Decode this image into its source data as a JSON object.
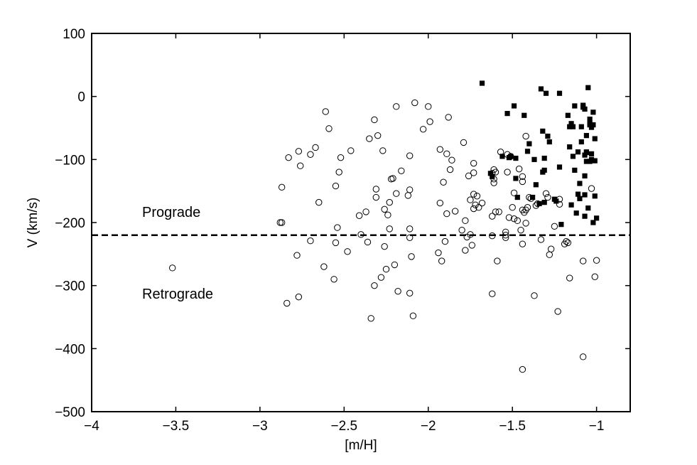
{
  "chart_data": {
    "type": "scatter",
    "xlabel": "[m/H]",
    "ylabel": "V (km/s)",
    "xlim": [
      -4,
      -0.8
    ],
    "ylim": [
      -500,
      100
    ],
    "xticks": [
      -4,
      -3.5,
      -3,
      -2.5,
      -2,
      -1.5,
      -1
    ],
    "xtick_labels": [
      "−4",
      "−3.5",
      "−3",
      "−2.5",
      "−2",
      "−1.5",
      "−1"
    ],
    "yticks": [
      100,
      0,
      -100,
      -200,
      -300,
      -400,
      -500
    ],
    "ytick_labels": [
      "100",
      "0",
      "−100",
      "−200",
      "−300",
      "−400",
      "−500"
    ],
    "grid": false,
    "reference_line": {
      "y": -220,
      "style": "dashed"
    },
    "annotations": [
      {
        "text": "Prograde",
        "x": -3.37,
        "y": -183
      },
      {
        "text": "Retrograde",
        "x": -3.37,
        "y": -312
      }
    ],
    "series": [
      {
        "marker": "open-circle",
        "points": [
          [
            -3.52,
            -272
          ],
          [
            -2.88,
            -200
          ],
          [
            -2.87,
            -200
          ],
          [
            -2.87,
            -144
          ],
          [
            -2.84,
            -328
          ],
          [
            -2.83,
            -97
          ],
          [
            -2.78,
            -252
          ],
          [
            -2.77,
            -318
          ],
          [
            -2.77,
            -87
          ],
          [
            -2.76,
            -110
          ],
          [
            -2.7,
            -92
          ],
          [
            -2.7,
            -229
          ],
          [
            -2.67,
            -81
          ],
          [
            -2.65,
            -168
          ],
          [
            -2.62,
            -270
          ],
          [
            -2.61,
            -24
          ],
          [
            -2.59,
            -51
          ],
          [
            -2.56,
            -290
          ],
          [
            -2.55,
            -232
          ],
          [
            -2.55,
            -142
          ],
          [
            -2.54,
            -208
          ],
          [
            -2.53,
            -120
          ],
          [
            -2.52,
            -97
          ],
          [
            -2.48,
            -246
          ],
          [
            -2.46,
            -86
          ],
          [
            -2.41,
            -189
          ],
          [
            -2.4,
            -219
          ],
          [
            -2.37,
            -183
          ],
          [
            -2.36,
            -231
          ],
          [
            -2.35,
            -67
          ],
          [
            -2.34,
            -352
          ],
          [
            -2.32,
            -37
          ],
          [
            -2.32,
            -300
          ],
          [
            -2.31,
            -147
          ],
          [
            -2.31,
            -160
          ],
          [
            -2.3,
            -62
          ],
          [
            -2.28,
            -287
          ],
          [
            -2.27,
            -86
          ],
          [
            -2.26,
            -179
          ],
          [
            -2.26,
            -238
          ],
          [
            -2.25,
            -274
          ],
          [
            -2.24,
            -188
          ],
          [
            -2.23,
            -168
          ],
          [
            -2.23,
            -210
          ],
          [
            -2.22,
            -131
          ],
          [
            -2.21,
            -130
          ],
          [
            -2.2,
            -267
          ],
          [
            -2.19,
            -16
          ],
          [
            -2.19,
            -154
          ],
          [
            -2.18,
            -309
          ],
          [
            -2.16,
            -118
          ],
          [
            -2.12,
            -157
          ],
          [
            -2.11,
            -210
          ],
          [
            -2.11,
            -94
          ],
          [
            -2.11,
            -224
          ],
          [
            -2.11,
            -148
          ],
          [
            -2.11,
            -312
          ],
          [
            -2.1,
            -254
          ],
          [
            -2.09,
            -348
          ],
          [
            -2.08,
            -10
          ],
          [
            -2.03,
            -52
          ],
          [
            -2.0,
            -16
          ],
          [
            -1.99,
            -40
          ],
          [
            -1.94,
            -248
          ],
          [
            -1.93,
            -84
          ],
          [
            -1.93,
            -169
          ],
          [
            -1.92,
            -261
          ],
          [
            -1.91,
            -136
          ],
          [
            -1.9,
            -230
          ],
          [
            -1.89,
            -91
          ],
          [
            -1.89,
            -186
          ],
          [
            -1.88,
            -33
          ],
          [
            -1.87,
            -116
          ],
          [
            -1.86,
            -101
          ],
          [
            -1.84,
            -182
          ],
          [
            -1.8,
            -212
          ],
          [
            -1.79,
            -73
          ],
          [
            -1.78,
            -197
          ],
          [
            -1.78,
            -244
          ],
          [
            -1.77,
            -223
          ],
          [
            -1.76,
            -126
          ],
          [
            -1.75,
            -164
          ],
          [
            -1.75,
            -219
          ],
          [
            -1.74,
            -236
          ],
          [
            -1.73,
            -106
          ],
          [
            -1.73,
            -121
          ],
          [
            -1.73,
            -178
          ],
          [
            -1.73,
            -155
          ],
          [
            -1.72,
            -172
          ],
          [
            -1.71,
            -158
          ],
          [
            -1.7,
            -176
          ],
          [
            -1.68,
            -169
          ],
          [
            -1.62,
            -122
          ],
          [
            -1.62,
            -221
          ],
          [
            -1.62,
            -313
          ],
          [
            -1.62,
            -190
          ],
          [
            -1.61,
            -116
          ],
          [
            -1.61,
            -131
          ],
          [
            -1.61,
            -137
          ],
          [
            -1.6,
            -120
          ],
          [
            -1.6,
            -183
          ],
          [
            -1.59,
            -261
          ],
          [
            -1.58,
            -183
          ],
          [
            -1.57,
            -88
          ],
          [
            -1.54,
            -215
          ],
          [
            -1.54,
            -220
          ],
          [
            -1.54,
            -224
          ],
          [
            -1.53,
            -120
          ],
          [
            -1.53,
            -92
          ],
          [
            -1.52,
            -192
          ],
          [
            -1.51,
            -95
          ],
          [
            -1.5,
            -176
          ],
          [
            -1.49,
            -153
          ],
          [
            -1.49,
            -194
          ],
          [
            -1.47,
            -197
          ],
          [
            -1.46,
            -115
          ],
          [
            -1.45,
            -212
          ],
          [
            -1.44,
            -135
          ],
          [
            -1.44,
            -127
          ],
          [
            -1.44,
            -433
          ],
          [
            -1.44,
            -234
          ],
          [
            -1.44,
            -180
          ],
          [
            -1.43,
            -184
          ],
          [
            -1.42,
            -180
          ],
          [
            -1.42,
            -63
          ],
          [
            -1.42,
            -201
          ],
          [
            -1.41,
            -176
          ],
          [
            -1.4,
            -160
          ],
          [
            -1.39,
            -162
          ],
          [
            -1.37,
            -316
          ],
          [
            -1.36,
            -173
          ],
          [
            -1.35,
            -170
          ],
          [
            -1.33,
            -227
          ],
          [
            -1.3,
            -154
          ],
          [
            -1.29,
            -160
          ],
          [
            -1.28,
            -251
          ],
          [
            -1.27,
            -242
          ],
          [
            -1.25,
            -206
          ],
          [
            -1.23,
            -341
          ],
          [
            -1.22,
            -163
          ],
          [
            -1.22,
            -171
          ],
          [
            -1.19,
            -234
          ],
          [
            -1.18,
            -230
          ],
          [
            -1.17,
            -232
          ],
          [
            -1.16,
            -288
          ],
          [
            -1.08,
            -261
          ],
          [
            -1.08,
            -413
          ],
          [
            -1.03,
            -146
          ],
          [
            -1.01,
            -286
          ],
          [
            -1.0,
            -260
          ]
        ]
      },
      {
        "marker": "filled-square",
        "points": [
          [
            -1.68,
            21
          ],
          [
            -1.63,
            -122
          ],
          [
            -1.62,
            -127
          ],
          [
            -1.56,
            -95
          ],
          [
            -1.53,
            -27
          ],
          [
            -1.52,
            -97
          ],
          [
            -1.51,
            -95
          ],
          [
            -1.49,
            -15
          ],
          [
            -1.48,
            -98
          ],
          [
            -1.48,
            -130
          ],
          [
            -1.47,
            -160
          ],
          [
            -1.43,
            -30
          ],
          [
            -1.41,
            -87
          ],
          [
            -1.4,
            -75
          ],
          [
            -1.38,
            -160
          ],
          [
            -1.37,
            -100
          ],
          [
            -1.36,
            -140
          ],
          [
            -1.34,
            -170
          ],
          [
            -1.33,
            12
          ],
          [
            -1.32,
            -55
          ],
          [
            -1.32,
            -120
          ],
          [
            -1.31,
            -98
          ],
          [
            -1.31,
            -117
          ],
          [
            -1.31,
            -168
          ],
          [
            -1.3,
            5
          ],
          [
            -1.29,
            -63
          ],
          [
            -1.28,
            -72
          ],
          [
            -1.25,
            -163
          ],
          [
            -1.24,
            -166
          ],
          [
            -1.22,
            5
          ],
          [
            -1.22,
            -112
          ],
          [
            -1.21,
            -203
          ],
          [
            -1.17,
            -30
          ],
          [
            -1.16,
            -48
          ],
          [
            -1.16,
            -80
          ],
          [
            -1.15,
            -43
          ],
          [
            -1.15,
            -172
          ],
          [
            -1.14,
            -95
          ],
          [
            -1.14,
            -48
          ],
          [
            -1.13,
            -15
          ],
          [
            -1.13,
            -117
          ],
          [
            -1.12,
            -185
          ],
          [
            -1.11,
            -88
          ],
          [
            -1.11,
            -155
          ],
          [
            -1.1,
            -162
          ],
          [
            -1.1,
            -138
          ],
          [
            -1.09,
            -48
          ],
          [
            -1.09,
            -72
          ],
          [
            -1.08,
            -17
          ],
          [
            -1.08,
            -14
          ],
          [
            -1.07,
            -20
          ],
          [
            -1.07,
            -93
          ],
          [
            -1.07,
            -126
          ],
          [
            -1.07,
            -156
          ],
          [
            -1.07,
            -190
          ],
          [
            -1.06,
            -62
          ],
          [
            -1.06,
            -103
          ],
          [
            -1.06,
            -89
          ],
          [
            -1.06,
            -88
          ],
          [
            -1.05,
            -177
          ],
          [
            -1.05,
            14
          ],
          [
            -1.04,
            -36
          ],
          [
            -1.04,
            -43
          ],
          [
            -1.04,
            -45
          ],
          [
            -1.04,
            -103
          ],
          [
            -1.03,
            -49
          ],
          [
            -1.03,
            -91
          ],
          [
            -1.03,
            -100
          ],
          [
            -1.02,
            -25
          ],
          [
            -1.02,
            -45
          ],
          [
            -1.02,
            -200
          ],
          [
            -1.01,
            -158
          ],
          [
            -1.01,
            -102
          ],
          [
            -1.01,
            -67
          ],
          [
            -1.0,
            -193
          ]
        ]
      }
    ]
  }
}
